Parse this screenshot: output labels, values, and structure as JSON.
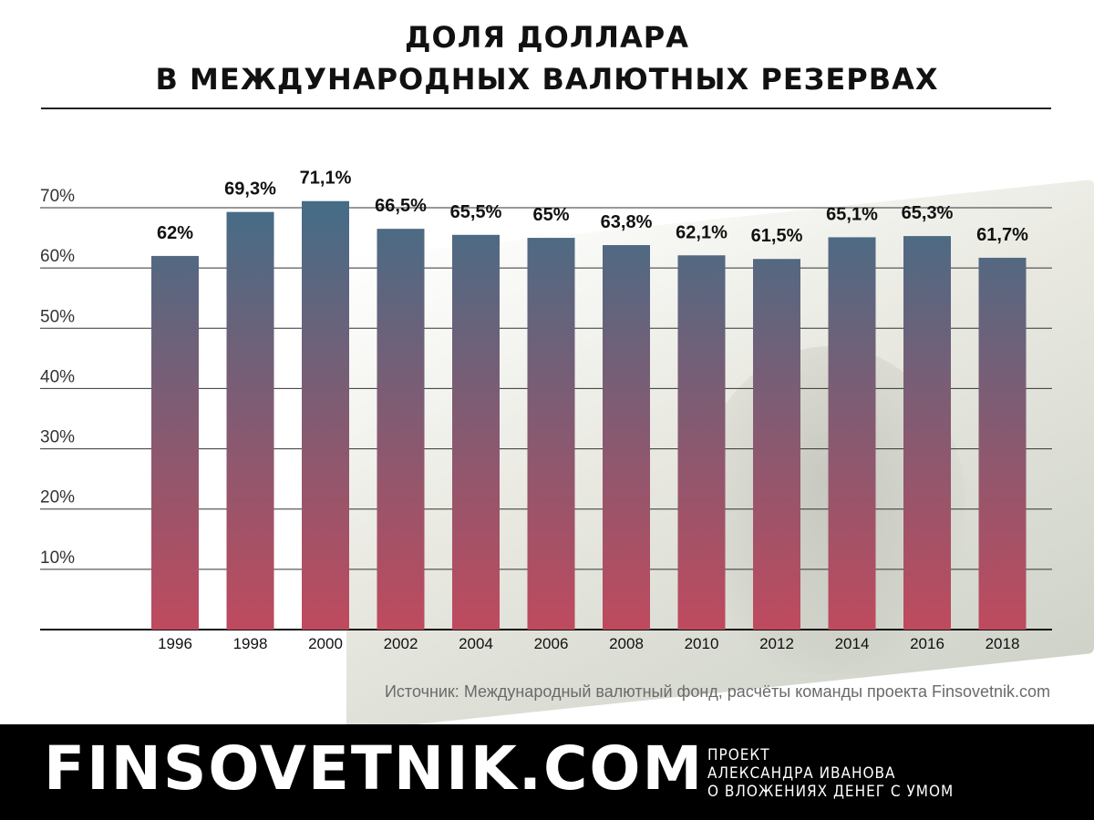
{
  "header": {
    "title_line1": "ДОЛЯ ДОЛЛАРА",
    "title_line2": "В МЕЖДУНАРОДНЫХ ВАЛЮТНЫХ РЕЗЕРВАХ"
  },
  "source": "Источник: Международный валютный фонд, расчёты команды проекта Finsovetnik.com",
  "footer": {
    "brand": "FINSOVETNIK.COM",
    "tagline": [
      "ПРОЕКТ",
      "АЛЕКСАНДРА ИВАНОВА",
      "О ВЛОЖЕНИЯХ ДЕНЕГ С УМОМ"
    ]
  },
  "chart_data": {
    "type": "bar",
    "categories": [
      "1996",
      "1998",
      "2000",
      "2002",
      "2004",
      "2006",
      "2008",
      "2010",
      "2012",
      "2014",
      "2016",
      "2018"
    ],
    "values": [
      62,
      69.3,
      71.1,
      66.5,
      65.5,
      65,
      63.8,
      62.1,
      61.5,
      65.1,
      65.3,
      61.7
    ],
    "value_labels": [
      "62%",
      "69,3%",
      "71,1%",
      "66,5%",
      "65,5%",
      "65%",
      "63,8%",
      "62,1%",
      "61,5%",
      "65,1%",
      "65,3%",
      "61,7%"
    ],
    "y_ticks": [
      10,
      20,
      30,
      40,
      50,
      60,
      70
    ],
    "y_tick_labels": [
      "10%",
      "20%",
      "30%",
      "40%",
      "50%",
      "60%",
      "70%"
    ],
    "ylim": [
      0,
      70
    ],
    "grid": true,
    "colors": {
      "bar_top": "#466c86",
      "bar_bottom": "#bf4a5e",
      "grid": "#333333"
    }
  }
}
